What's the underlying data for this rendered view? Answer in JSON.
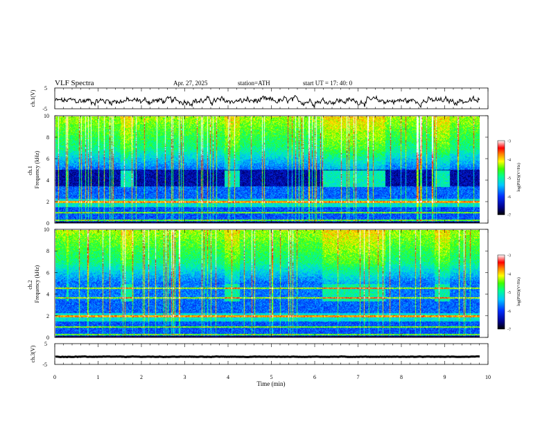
{
  "header": {
    "title": "VLF  Spectra",
    "date": "Apr. 27, 2025",
    "station": "station=ATH",
    "start_ut": "start  UT  =   17: 40: 0"
  },
  "chart_data": [
    {
      "type": "line",
      "panel": "ch1-voltage",
      "ylabel": "ch.1(V)",
      "ylim": [
        -5,
        5
      ],
      "y_ticks": [
        "5",
        "-5"
      ],
      "xlim": [
        0,
        10
      ],
      "trace_level_v": -1.2
    },
    {
      "type": "heatmap",
      "panel": "ch1-spectrogram",
      "ylabel": "ch.1\nFrequency  (kHz)",
      "ylim": [
        0,
        10
      ],
      "y_ticks": [
        "0",
        "2",
        "4",
        "6",
        "8",
        "10"
      ],
      "xlim": [
        0,
        10
      ],
      "colorbar": {
        "label": "log(PSD)(V²/Hz)",
        "range": [
          -7,
          -3
        ],
        "ticks": [
          "-3",
          "-4",
          "-5",
          "-6",
          "-7"
        ]
      },
      "sferic_burst_intervals_min": [
        [
          0.25,
          0.3
        ],
        [
          1.5,
          1.8
        ],
        [
          3.9,
          4.25
        ],
        [
          6.15,
          7.6
        ],
        [
          8.75,
          9.1
        ]
      ],
      "bands_khz": [
        2.0,
        1.0,
        0.3,
        0.1
      ]
    },
    {
      "type": "heatmap",
      "panel": "ch2-spectrogram",
      "ylabel": "ch.2\nFrequency  (kHz)",
      "ylim": [
        0,
        10
      ],
      "y_ticks": [
        "0",
        "2",
        "4",
        "6",
        "8",
        "10"
      ],
      "xlim": [
        0,
        10
      ],
      "colorbar": {
        "label": "log(PSD)(V²/Hz)",
        "range": [
          -7,
          -3
        ],
        "ticks": [
          "-3",
          "-4",
          "-5",
          "-6",
          "-7"
        ]
      },
      "sferic_burst_intervals_min": [
        [
          0.25,
          0.3
        ],
        [
          1.5,
          1.8
        ],
        [
          3.9,
          4.25
        ],
        [
          6.15,
          7.6
        ],
        [
          8.75,
          9.1
        ]
      ],
      "bands_khz": [
        4.6,
        3.7,
        2.0,
        1.0,
        0.3,
        0.1
      ]
    },
    {
      "type": "line",
      "panel": "ch3-voltage",
      "ylabel": "ch.3(V)",
      "ylim": [
        -5,
        5
      ],
      "y_ticks": [
        "5",
        "-5"
      ],
      "xlim": [
        0,
        10
      ],
      "trace_level_v": -1.3
    }
  ],
  "x_axis": {
    "label": "Time  (min)",
    "ticks": [
      "0",
      "1",
      "2",
      "3",
      "4",
      "5",
      "6",
      "7",
      "8",
      "9",
      "10"
    ],
    "range": [
      0,
      10
    ]
  }
}
